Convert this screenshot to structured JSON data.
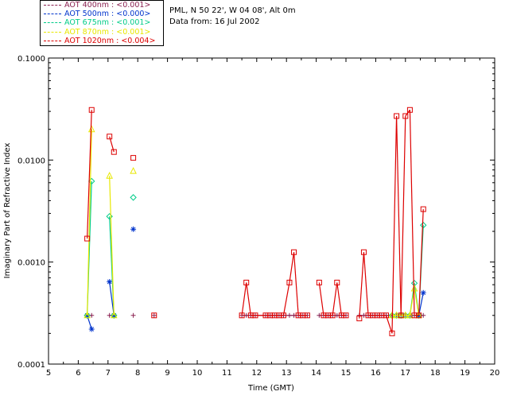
{
  "legend": [
    {
      "label": "AOT  400nm : <0.001>",
      "color": "#8b2252"
    },
    {
      "label": "AOT  500nm : <0.000>",
      "color": "#0033cc"
    },
    {
      "label": "AOT  675nm : <0.001>",
      "color": "#00cc88"
    },
    {
      "label": "AOT  870nm : <0.001>",
      "color": "#e8e800"
    },
    {
      "label": "AOT 1020nm : <0.004>",
      "color": "#dd0000"
    }
  ],
  "site": {
    "line1": "PML, N 50 22', W 04 08', Alt 0m",
    "line2": "Data from: 16 Jul 2002"
  },
  "chart_data": {
    "type": "scatter",
    "xlabel": "Time (GMT)",
    "ylabel": "Imaginary Part of Refractive Index",
    "xlim": [
      5,
      20
    ],
    "ylim": [
      0.0001,
      0.1
    ],
    "log_y": true,
    "x_ticks": [
      "5",
      "6",
      "7",
      "8",
      "9",
      "10",
      "11",
      "12",
      "13",
      "14",
      "15",
      "16",
      "17",
      "18",
      "19",
      "20"
    ],
    "y_ticks": [
      "0.0001",
      "0.0010",
      "0.0100",
      "0.1000"
    ],
    "series": [
      {
        "name": "AOT  400nm : <0.001>",
        "color": "#8b2252",
        "marker": "plus",
        "x": [
          6.3,
          6.45,
          7.05,
          7.2,
          7.85,
          8.55,
          11.5,
          11.65,
          11.8,
          11.95,
          12.3,
          12.45,
          12.6,
          12.75,
          12.9,
          13.1,
          13.25,
          13.4,
          13.55,
          13.7,
          14.1,
          14.25,
          14.4,
          14.55,
          14.7,
          14.85,
          15.0,
          15.45,
          15.6,
          15.75,
          15.9,
          16.05,
          16.2,
          16.35,
          16.55,
          16.7,
          16.85,
          17.0,
          17.15,
          17.3,
          17.45,
          17.6
        ],
        "y": [
          0.0003,
          0.0003,
          0.0003,
          0.0003,
          0.0003,
          0.0003,
          0.0003,
          0.0003,
          0.0003,
          0.0003,
          0.0003,
          0.0003,
          0.0003,
          0.0003,
          0.0003,
          0.0003,
          0.0003,
          0.0003,
          0.0003,
          0.0003,
          0.0003,
          0.0003,
          0.0003,
          0.0003,
          0.0003,
          0.0003,
          0.0003,
          0.0003,
          0.0003,
          0.0003,
          0.0003,
          0.0003,
          0.0003,
          0.0003,
          0.0003,
          0.0003,
          0.0003,
          0.0003,
          0.0003,
          0.0003,
          0.0003,
          0.0003
        ]
      },
      {
        "name": "AOT  500nm : <0.000>",
        "color": "#0033cc",
        "marker": "asterisk",
        "x": [
          6.3,
          6.45,
          7.05,
          7.2,
          7.85,
          17.45,
          17.6
        ],
        "y": [
          0.0003,
          0.00022,
          0.00064,
          0.0003,
          0.0021,
          0.0003,
          0.0005
        ]
      },
      {
        "name": "AOT  675nm : <0.001>",
        "color": "#00cc88",
        "marker": "diamond",
        "x": [
          6.3,
          6.45,
          7.05,
          7.2,
          7.85,
          16.55,
          16.7,
          16.85,
          17.0,
          17.15,
          17.3,
          17.45,
          17.6
        ],
        "y": [
          0.0003,
          0.0062,
          0.0028,
          0.0003,
          0.0043,
          0.0003,
          0.0003,
          0.0003,
          0.0003,
          0.0003,
          0.00062,
          0.0003,
          0.0023
        ]
      },
      {
        "name": "AOT  870nm : <0.001>",
        "color": "#e8e800",
        "marker": "triangle",
        "x": [
          6.3,
          6.45,
          7.05,
          7.2,
          7.85,
          16.55,
          16.7,
          16.85,
          17.0,
          17.15,
          17.3,
          17.45
        ],
        "y": [
          0.0003,
          0.02,
          0.007,
          0.0003,
          0.0078,
          0.0003,
          0.0003,
          0.0003,
          0.0003,
          0.0003,
          0.00055,
          0.0003
        ]
      },
      {
        "name": "AOT 1020nm : <0.004>",
        "color": "#dd0000",
        "marker": "square",
        "x": [
          6.3,
          6.45,
          7.05,
          7.2,
          7.85,
          8.55,
          11.5,
          11.65,
          11.8,
          11.95,
          12.3,
          12.45,
          12.6,
          12.75,
          12.9,
          13.1,
          13.25,
          13.4,
          13.55,
          13.7,
          14.1,
          14.25,
          14.4,
          14.55,
          14.7,
          14.85,
          15.0,
          15.45,
          15.6,
          15.75,
          15.9,
          16.05,
          16.2,
          16.35,
          16.55,
          16.7,
          16.85,
          17.0,
          17.15,
          17.3,
          17.45,
          17.6
        ],
        "y": [
          0.0017,
          0.031,
          0.017,
          0.012,
          0.0105,
          0.0003,
          0.0003,
          0.00063,
          0.0003,
          0.0003,
          0.0003,
          0.0003,
          0.0003,
          0.0003,
          0.0003,
          0.00063,
          0.00125,
          0.0003,
          0.0003,
          0.0003,
          0.00063,
          0.0003,
          0.0003,
          0.0003,
          0.00063,
          0.0003,
          0.0003,
          0.00028,
          0.00125,
          0.0003,
          0.0003,
          0.0003,
          0.0003,
          0.0003,
          0.0002,
          0.027,
          0.0003,
          0.027,
          0.031,
          0.0003,
          0.0003,
          0.0033
        ]
      }
    ]
  }
}
